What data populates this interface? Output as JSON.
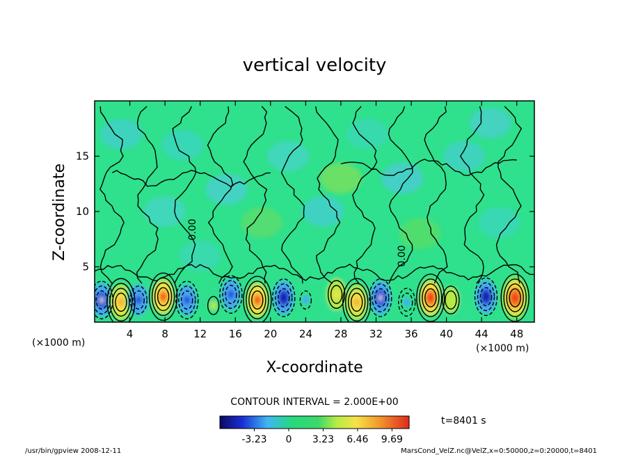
{
  "chart_data": {
    "type": "heatmap",
    "title": "vertical velocity",
    "xlabel": "X-coordinate",
    "ylabel": "Z-coordinate",
    "x_unit_left": "(×1000 m)",
    "x_unit_right": "(×1000 m)",
    "xlim": [
      0,
      50
    ],
    "ylim": [
      0,
      20
    ],
    "x_ticks": [
      4,
      8,
      12,
      16,
      20,
      24,
      28,
      32,
      36,
      40,
      44,
      48
    ],
    "y_ticks": [
      5,
      10,
      15
    ],
    "contour_interval_text": "CONTOUR INTERVAL = 2.000E+00",
    "contour_labels": [
      "0.00",
      "0.00"
    ],
    "colorbar": {
      "ticks": [
        "-3.23",
        "0",
        "3.23",
        "6.46",
        "9.69"
      ],
      "tick_values": [
        -3.23,
        0,
        3.23,
        6.46,
        9.69
      ],
      "range": [
        -6.46,
        11.3
      ]
    },
    "time_label": "t=8401 s",
    "grid": false,
    "cells": [
      {
        "x": 0.8,
        "z": 2.0,
        "w": -5.5
      },
      {
        "x": 3.0,
        "z": 1.8,
        "w": 6.5
      },
      {
        "x": 5.0,
        "z": 2.0,
        "w": -4.0
      },
      {
        "x": 7.8,
        "z": 2.3,
        "w": 8.0
      },
      {
        "x": 10.5,
        "z": 2.0,
        "w": -4.5
      },
      {
        "x": 13.5,
        "z": 1.5,
        "w": 2.0
      },
      {
        "x": 15.5,
        "z": 2.5,
        "w": -4.5
      },
      {
        "x": 18.5,
        "z": 2.0,
        "w": 7.5
      },
      {
        "x": 21.5,
        "z": 2.2,
        "w": -5.0
      },
      {
        "x": 24.0,
        "z": 2.0,
        "w": -2.0
      },
      {
        "x": 27.5,
        "z": 2.5,
        "w": 4.0
      },
      {
        "x": 29.8,
        "z": 1.8,
        "w": 6.5
      },
      {
        "x": 32.5,
        "z": 2.2,
        "w": -5.5
      },
      {
        "x": 35.5,
        "z": 1.8,
        "w": -2.5
      },
      {
        "x": 38.2,
        "z": 2.2,
        "w": 9.0
      },
      {
        "x": 40.5,
        "z": 2.0,
        "w": 3.0
      },
      {
        "x": 44.5,
        "z": 2.3,
        "w": -5.0
      },
      {
        "x": 47.8,
        "z": 2.2,
        "w": 10.0
      }
    ]
  },
  "footer": {
    "left": "/usr/bin/gpview   2008-12-11",
    "right": "MarsCond_VelZ.nc@VelZ,x=0:50000,z=0:20000,t=8401"
  }
}
